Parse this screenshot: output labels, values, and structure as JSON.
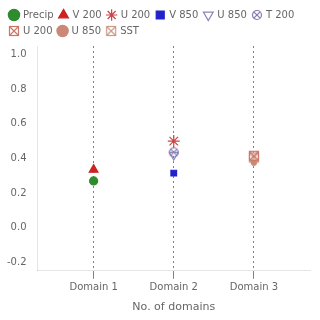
{
  "chart_data": {
    "type": "scatter",
    "xlabel": "No. of domains",
    "x": [
      1,
      2,
      3
    ],
    "xlim": [
      0.3,
      3.7
    ],
    "xticks": [
      {
        "value": 1,
        "label": "Domain 1"
      },
      {
        "value": 2,
        "label": "Domain 2"
      },
      {
        "value": 3,
        "label": "Domain 3"
      }
    ],
    "ylim": [
      -0.25,
      1.05
    ],
    "yticks": [
      -0.2,
      {
        "value": 0.0,
        "label": "0.0"
      },
      0.2,
      0.4,
      0.6,
      0.8,
      {
        "value": 1.0,
        "label": "1.0"
      }
    ],
    "grid": "x",
    "legend": "upper left",
    "series": [
      {
        "name": "Precip",
        "marker": "circle",
        "color": "#2e8b2e",
        "values": [
          0.27,
          null,
          null
        ]
      },
      {
        "name": "V 200",
        "marker": "triangle",
        "color": "#cc2222",
        "values": [
          0.335,
          null,
          null
        ]
      },
      {
        "name": "U 200",
        "marker": "star",
        "color": "#cc4444",
        "values": [
          null,
          0.5,
          null
        ]
      },
      {
        "name": "V 850",
        "marker": "square",
        "color": "#2222cc",
        "values": [
          null,
          0.315,
          null
        ]
      },
      {
        "name": "U 850",
        "marker": "triangle_down_open",
        "color": "#8888bb",
        "values": [
          null,
          0.42,
          null
        ]
      },
      {
        "name": "T 200",
        "marker": "circle_x",
        "color": "#8877aa",
        "values": [
          null,
          0.435,
          null
        ]
      },
      {
        "name": "U 200",
        "marker": "square_x",
        "color": "#cc7766",
        "values": [
          null,
          null,
          0.415
        ]
      },
      {
        "name": "U 850",
        "marker": "point",
        "color": "#cc8877",
        "values": [
          null,
          null,
          0.375
        ]
      },
      {
        "name": "SST",
        "marker": "square_x",
        "color": "#cc9988",
        "values": [
          null,
          null,
          0.405
        ]
      }
    ]
  }
}
